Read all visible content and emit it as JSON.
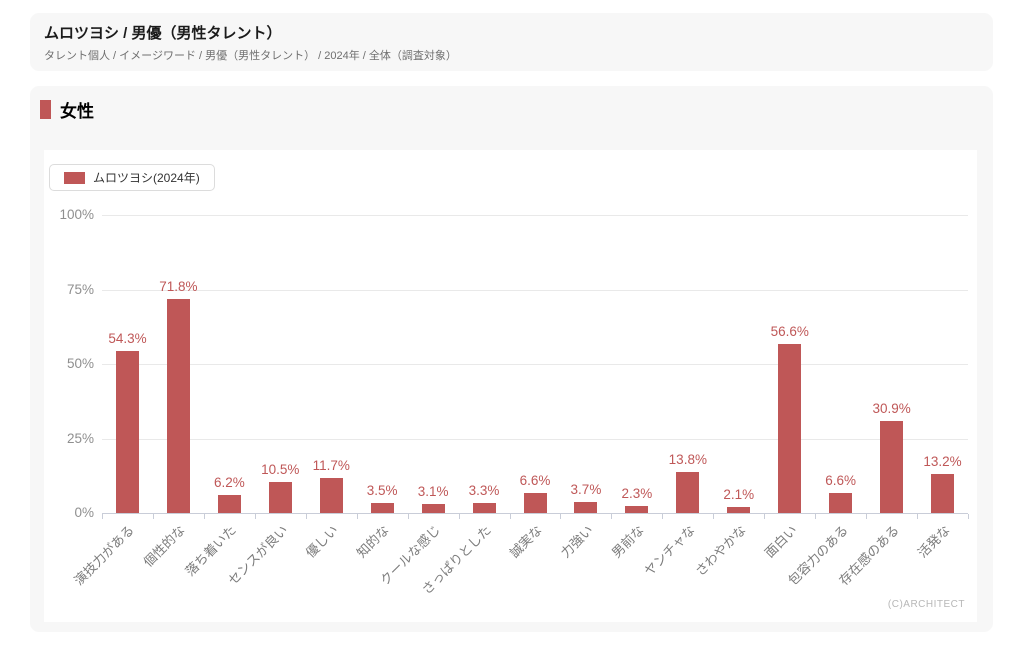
{
  "header": {
    "title": "ムロツヨシ / 男優（男性タレント）",
    "breadcrumb": "タレント個人 / イメージワード / 男優（男性タレント） / 2024年 / 全体（調査対象）"
  },
  "section": {
    "title": "女性"
  },
  "legend": {
    "label": "ムロツヨシ(2024年)"
  },
  "copyright": "(C)ARCHITECT",
  "colors": {
    "accent": "#bf5757",
    "card_bg": "#f7f7f7",
    "panel_bg": "#ffffff",
    "gridline": "#e9e9e9",
    "axis": "#c9cdd8"
  },
  "chart_data": {
    "type": "bar",
    "title": "女性",
    "series_name": "ムロツヨシ(2024年)",
    "categories": [
      "演技力がある",
      "個性的な",
      "落ち着いた",
      "センスが良い",
      "優しい",
      "知的な",
      "クールな感じ",
      "さっぱりとした",
      "誠実な",
      "力強い",
      "男前な",
      "ヤンチャな",
      "さわやかな",
      "面白い",
      "包容力のある",
      "存在感のある",
      "活発な"
    ],
    "values": [
      54.3,
      71.8,
      6.2,
      10.5,
      11.7,
      3.5,
      3.1,
      3.3,
      6.6,
      3.7,
      2.3,
      13.8,
      2.1,
      56.6,
      6.6,
      30.9,
      13.2
    ],
    "value_labels": [
      "54.3%",
      "71.8%",
      "6.2%",
      "10.5%",
      "11.7%",
      "3.5%",
      "3.1%",
      "3.3%",
      "6.6%",
      "3.7%",
      "2.3%",
      "13.8%",
      "2.1%",
      "56.6%",
      "6.6%",
      "30.9%",
      "13.2%"
    ],
    "xlabel": "",
    "ylabel": "",
    "ylim": [
      0,
      100
    ],
    "y_ticks": [
      {
        "pct": 100,
        "label": "100%"
      },
      {
        "pct": 75,
        "label": "75%"
      },
      {
        "pct": 50,
        "label": "50%"
      },
      {
        "pct": 25,
        "label": "25%"
      },
      {
        "pct": 0,
        "label": "0%"
      }
    ],
    "grid": true,
    "legend_position": "top-left"
  }
}
